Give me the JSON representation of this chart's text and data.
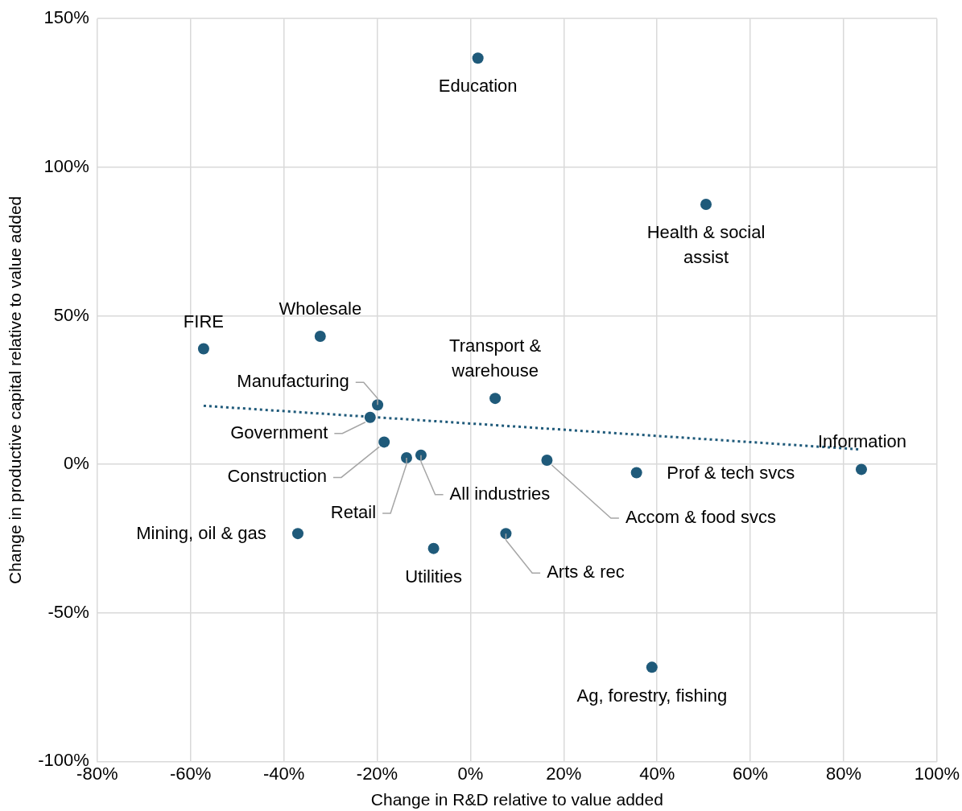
{
  "chart_data": {
    "type": "scatter",
    "xlabel": "Change in R&D relative to value added",
    "ylabel": "Change in productive capital relative to value added",
    "xlim": [
      -80,
      100
    ],
    "xticks": [
      {
        "value": -80,
        "label": "-80%"
      },
      {
        "value": -60,
        "label": "-60%"
      },
      {
        "value": -40,
        "label": "-40%"
      },
      {
        "value": -20,
        "label": "-20%"
      },
      {
        "value": 0,
        "label": "0%"
      },
      {
        "value": 20,
        "label": "20%"
      },
      {
        "value": 40,
        "label": "40%"
      },
      {
        "value": 60,
        "label": "60%"
      },
      {
        "value": 80,
        "label": "80%"
      },
      {
        "value": 100,
        "label": "100%"
      }
    ],
    "ylim": [
      -100,
      150
    ],
    "yticks": [
      {
        "value": -100,
        "label": "-100%"
      },
      {
        "value": -50,
        "label": "-50%"
      },
      {
        "value": 0,
        "label": "0%"
      },
      {
        "value": 50,
        "label": "50%"
      },
      {
        "value": 100,
        "label": "100%"
      },
      {
        "value": 150,
        "label": "150%"
      }
    ],
    "grid": true,
    "legend": false,
    "marker": "circle",
    "series": [
      {
        "color": "#1f5a7a",
        "x": [
          1.6,
          50.5,
          -57.2,
          -32.2,
          5.3,
          -19.9,
          -21.5,
          -18.5,
          -13.7,
          -10.6,
          16.4,
          35.6,
          83.8,
          -37,
          -7.9,
          7.6,
          38.9
        ],
        "values": [
          136.7,
          87.5,
          38.9,
          43.1,
          22.2,
          20,
          15.8,
          7.5,
          2.2,
          3.1,
          1.4,
          -2.8,
          -1.7,
          -23.3,
          -28.3,
          -23.3,
          -68.3
        ]
      },
      {
        "type": "line",
        "color": "#1f5a7a",
        "line_style": "dotted",
        "marker": "none",
        "x": [
          -57.2,
          83.8
        ],
        "values": [
          19.7,
          5.0
        ]
      }
    ],
    "annotations": [
      {
        "text": "Education",
        "x": 1.6,
        "y": 136.7
      },
      {
        "text": "Health & social assist",
        "x": 50.5,
        "y": 87.5
      },
      {
        "text": "FIRE",
        "x": -57.2,
        "y": 38.9
      },
      {
        "text": "Wholesale",
        "x": -32.2,
        "y": 43.1
      },
      {
        "text": "Transport & warehouse",
        "x": 5.3,
        "y": 22.2
      },
      {
        "text": "Manufacturing",
        "x": -19.9,
        "y": 20
      },
      {
        "text": "Government",
        "x": -21.5,
        "y": 15.8
      },
      {
        "text": "Construction",
        "x": -18.5,
        "y": 7.5
      },
      {
        "text": "Retail",
        "x": -13.7,
        "y": 2.2
      },
      {
        "text": "All industries",
        "x": -10.6,
        "y": 3.1
      },
      {
        "text": "Accom & food svcs",
        "x": 16.4,
        "y": 1.4
      },
      {
        "text": "Prof & tech svcs",
        "x": 35.6,
        "y": -2.8
      },
      {
        "text": "Information",
        "x": 83.8,
        "y": -1.7
      },
      {
        "text": "Mining, oil & gas",
        "x": -37,
        "y": -23.3
      },
      {
        "text": "Utilities",
        "x": -7.9,
        "y": -28.3
      },
      {
        "text": "Arts & rec",
        "x": 7.6,
        "y": -23.3
      },
      {
        "text": "Ag, forestry, fishing",
        "x": 38.9,
        "y": -68.3
      }
    ]
  }
}
